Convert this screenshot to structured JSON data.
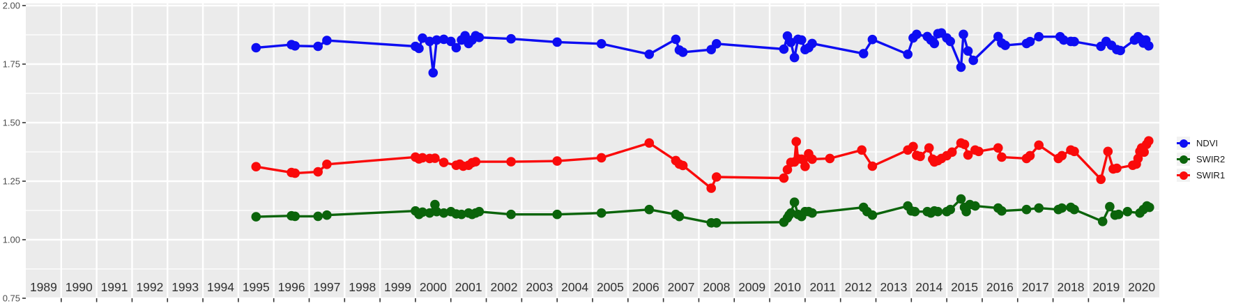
{
  "chart_data": {
    "type": "line",
    "title": "",
    "xlabel": "",
    "ylabel": "",
    "x_unit": "year",
    "xlim": [
      1988.5,
      2020.5
    ],
    "ylim": [
      0.75,
      2.0
    ],
    "y_tick_values": [
      0.75,
      1.0,
      1.25,
      1.5,
      1.75,
      2.0
    ],
    "y_tick_labels": [
      "0.75",
      "1.00",
      "1.25",
      "1.50",
      "1.75",
      "2.00"
    ],
    "y_minor_ticks": [
      0.875,
      1.125,
      1.375,
      1.625,
      1.875
    ],
    "x_tick_labels": [
      "1989",
      "1990",
      "1991",
      "1992",
      "1993",
      "1994",
      "1995",
      "1996",
      "1997",
      "1998",
      "1999",
      "2000",
      "2001",
      "2002",
      "2003",
      "2004",
      "2005",
      "2006",
      "2007",
      "2008",
      "2009",
      "2010",
      "2011",
      "2012",
      "2013",
      "2014",
      "2015",
      "2016",
      "2017",
      "2018",
      "2019",
      "2020"
    ],
    "grid": true,
    "panel_background": "#EBEBEB",
    "gridline_color": "#FFFFFF",
    "tick_color": "#333333",
    "x_label_color": "#303030",
    "y_label_color": "#4D4D4D",
    "legend_position": "right",
    "legend_key_background": "#F2F2F2",
    "series": [
      {
        "name": "NDVI",
        "color": "#0D0DF2",
        "points": [
          [
            1995.0,
            1.82
          ],
          [
            1996.0,
            1.833
          ],
          [
            1996.1,
            1.828
          ],
          [
            1996.75,
            1.826
          ],
          [
            1997.0,
            1.851
          ],
          [
            1999.5,
            1.826
          ],
          [
            1999.6,
            1.817
          ],
          [
            1999.7,
            1.861
          ],
          [
            1999.9,
            1.847
          ],
          [
            2000.0,
            1.713
          ],
          [
            2000.1,
            1.853
          ],
          [
            2000.3,
            1.856
          ],
          [
            2000.5,
            1.847
          ],
          [
            2000.65,
            1.82
          ],
          [
            2000.8,
            1.853
          ],
          [
            2000.9,
            1.871
          ],
          [
            2001.0,
            1.838
          ],
          [
            2001.1,
            1.853
          ],
          [
            2001.2,
            1.871
          ],
          [
            2001.3,
            1.864
          ],
          [
            2002.2,
            1.858
          ],
          [
            2003.5,
            1.844
          ],
          [
            2004.75,
            1.837
          ],
          [
            2006.1,
            1.792
          ],
          [
            2006.85,
            1.856
          ],
          [
            2006.95,
            1.81
          ],
          [
            2007.05,
            1.801
          ],
          [
            2007.85,
            1.812
          ],
          [
            2008.0,
            1.837
          ],
          [
            2009.9,
            1.814
          ],
          [
            2010.0,
            1.87
          ],
          [
            2010.1,
            1.843
          ],
          [
            2010.2,
            1.778
          ],
          [
            2010.3,
            1.856
          ],
          [
            2010.4,
            1.853
          ],
          [
            2010.5,
            1.812
          ],
          [
            2010.6,
            1.82
          ],
          [
            2010.7,
            1.838
          ],
          [
            2012.15,
            1.795
          ],
          [
            2012.4,
            1.855
          ],
          [
            2013.4,
            1.792
          ],
          [
            2013.55,
            1.862
          ],
          [
            2013.65,
            1.877
          ],
          [
            2013.95,
            1.868
          ],
          [
            2014.05,
            1.853
          ],
          [
            2014.15,
            1.838
          ],
          [
            2014.25,
            1.88
          ],
          [
            2014.35,
            1.883
          ],
          [
            2014.5,
            1.862
          ],
          [
            2014.6,
            1.847
          ],
          [
            2014.9,
            1.737
          ],
          [
            2014.97,
            1.877
          ],
          [
            2015.1,
            1.806
          ],
          [
            2015.25,
            1.766
          ],
          [
            2015.95,
            1.868
          ],
          [
            2016.05,
            1.84
          ],
          [
            2016.15,
            1.83
          ],
          [
            2016.75,
            1.838
          ],
          [
            2016.85,
            1.846
          ],
          [
            2017.1,
            1.867
          ],
          [
            2017.7,
            1.867
          ],
          [
            2017.8,
            1.853
          ],
          [
            2018.0,
            1.847
          ],
          [
            2018.1,
            1.846
          ],
          [
            2018.85,
            1.826
          ],
          [
            2019.0,
            1.847
          ],
          [
            2019.15,
            1.83
          ],
          [
            2019.3,
            1.812
          ],
          [
            2019.4,
            1.808
          ],
          [
            2019.8,
            1.853
          ],
          [
            2019.9,
            1.867
          ],
          [
            2019.97,
            1.857
          ],
          [
            2020.05,
            1.84
          ],
          [
            2020.12,
            1.853
          ],
          [
            2020.2,
            1.828
          ]
        ]
      },
      {
        "name": "SWIR2",
        "color": "#0B640B",
        "points": [
          [
            1995.0,
            1.098
          ],
          [
            1996.0,
            1.102
          ],
          [
            1996.1,
            1.1
          ],
          [
            1996.75,
            1.1
          ],
          [
            1997.0,
            1.105
          ],
          [
            1999.5,
            1.123
          ],
          [
            1999.6,
            1.108
          ],
          [
            1999.7,
            1.118
          ],
          [
            1999.9,
            1.114
          ],
          [
            2000.05,
            1.15
          ],
          [
            2000.1,
            1.12
          ],
          [
            2000.3,
            1.114
          ],
          [
            2000.5,
            1.12
          ],
          [
            2000.65,
            1.11
          ],
          [
            2000.8,
            1.108
          ],
          [
            2001.0,
            1.114
          ],
          [
            2001.1,
            1.108
          ],
          [
            2001.2,
            1.114
          ],
          [
            2001.3,
            1.12
          ],
          [
            2002.2,
            1.108
          ],
          [
            2003.5,
            1.108
          ],
          [
            2004.75,
            1.114
          ],
          [
            2006.1,
            1.129
          ],
          [
            2006.85,
            1.108
          ],
          [
            2006.95,
            1.099
          ],
          [
            2007.85,
            1.072
          ],
          [
            2008.0,
            1.072
          ],
          [
            2009.9,
            1.075
          ],
          [
            2010.0,
            1.093
          ],
          [
            2010.05,
            1.105
          ],
          [
            2010.1,
            1.114
          ],
          [
            2010.2,
            1.16
          ],
          [
            2010.3,
            1.108
          ],
          [
            2010.4,
            1.099
          ],
          [
            2010.5,
            1.12
          ],
          [
            2010.6,
            1.12
          ],
          [
            2010.7,
            1.114
          ],
          [
            2012.15,
            1.138
          ],
          [
            2012.25,
            1.12
          ],
          [
            2012.4,
            1.105
          ],
          [
            2013.4,
            1.144
          ],
          [
            2013.5,
            1.123
          ],
          [
            2013.6,
            1.12
          ],
          [
            2013.95,
            1.12
          ],
          [
            2014.05,
            1.114
          ],
          [
            2014.15,
            1.123
          ],
          [
            2014.25,
            1.12
          ],
          [
            2014.5,
            1.12
          ],
          [
            2014.6,
            1.129
          ],
          [
            2014.9,
            1.174
          ],
          [
            2015.0,
            1.138
          ],
          [
            2015.05,
            1.12
          ],
          [
            2015.15,
            1.15
          ],
          [
            2015.3,
            1.144
          ],
          [
            2015.95,
            1.135
          ],
          [
            2016.05,
            1.123
          ],
          [
            2016.75,
            1.129
          ],
          [
            2017.1,
            1.135
          ],
          [
            2017.65,
            1.129
          ],
          [
            2017.75,
            1.135
          ],
          [
            2018.0,
            1.138
          ],
          [
            2018.1,
            1.129
          ],
          [
            2018.9,
            1.078
          ],
          [
            2019.1,
            1.141
          ],
          [
            2019.25,
            1.105
          ],
          [
            2019.35,
            1.108
          ],
          [
            2019.6,
            1.12
          ],
          [
            2019.95,
            1.114
          ],
          [
            2020.05,
            1.129
          ],
          [
            2020.15,
            1.144
          ],
          [
            2020.22,
            1.138
          ]
        ]
      },
      {
        "name": "SWIR1",
        "color": "#FA0A0A",
        "points": [
          [
            1995.0,
            1.312
          ],
          [
            1996.0,
            1.287
          ],
          [
            1996.1,
            1.284
          ],
          [
            1996.75,
            1.29
          ],
          [
            1997.0,
            1.322
          ],
          [
            1999.5,
            1.353
          ],
          [
            1999.6,
            1.345
          ],
          [
            1999.7,
            1.35
          ],
          [
            1999.9,
            1.347
          ],
          [
            2000.05,
            1.348
          ],
          [
            2000.3,
            1.33
          ],
          [
            2000.65,
            1.318
          ],
          [
            2000.75,
            1.323
          ],
          [
            2000.85,
            1.314
          ],
          [
            2001.0,
            1.318
          ],
          [
            2001.1,
            1.329
          ],
          [
            2001.2,
            1.333
          ],
          [
            2002.2,
            1.333
          ],
          [
            2003.5,
            1.336
          ],
          [
            2004.75,
            1.35
          ],
          [
            2006.1,
            1.413
          ],
          [
            2006.85,
            1.338
          ],
          [
            2006.95,
            1.323
          ],
          [
            2007.05,
            1.317
          ],
          [
            2007.85,
            1.22
          ],
          [
            2008.0,
            1.268
          ],
          [
            2009.9,
            1.263
          ],
          [
            2010.0,
            1.299
          ],
          [
            2010.1,
            1.33
          ],
          [
            2010.2,
            1.332
          ],
          [
            2010.25,
            1.419
          ],
          [
            2010.3,
            1.345
          ],
          [
            2010.4,
            1.344
          ],
          [
            2010.5,
            1.313
          ],
          [
            2010.6,
            1.367
          ],
          [
            2010.7,
            1.344
          ],
          [
            2011.2,
            1.347
          ],
          [
            2012.1,
            1.383
          ],
          [
            2012.4,
            1.314
          ],
          [
            2013.4,
            1.383
          ],
          [
            2013.55,
            1.398
          ],
          [
            2013.65,
            1.36
          ],
          [
            2013.75,
            1.356
          ],
          [
            2014.0,
            1.392
          ],
          [
            2014.1,
            1.344
          ],
          [
            2014.15,
            1.332
          ],
          [
            2014.25,
            1.338
          ],
          [
            2014.35,
            1.347
          ],
          [
            2014.5,
            1.359
          ],
          [
            2014.65,
            1.374
          ],
          [
            2014.9,
            1.413
          ],
          [
            2015.0,
            1.407
          ],
          [
            2015.1,
            1.362
          ],
          [
            2015.3,
            1.383
          ],
          [
            2015.4,
            1.377
          ],
          [
            2015.95,
            1.392
          ],
          [
            2016.05,
            1.353
          ],
          [
            2016.75,
            1.347
          ],
          [
            2016.85,
            1.359
          ],
          [
            2017.1,
            1.404
          ],
          [
            2017.65,
            1.347
          ],
          [
            2017.75,
            1.359
          ],
          [
            2018.0,
            1.383
          ],
          [
            2018.1,
            1.377
          ],
          [
            2018.85,
            1.258
          ],
          [
            2019.05,
            1.377
          ],
          [
            2019.2,
            1.302
          ],
          [
            2019.3,
            1.305
          ],
          [
            2019.75,
            1.318
          ],
          [
            2019.85,
            1.323
          ],
          [
            2019.9,
            1.347
          ],
          [
            2019.95,
            1.377
          ],
          [
            2020.0,
            1.392
          ],
          [
            2020.07,
            1.374
          ],
          [
            2020.14,
            1.407
          ],
          [
            2020.2,
            1.422
          ]
        ]
      }
    ]
  }
}
